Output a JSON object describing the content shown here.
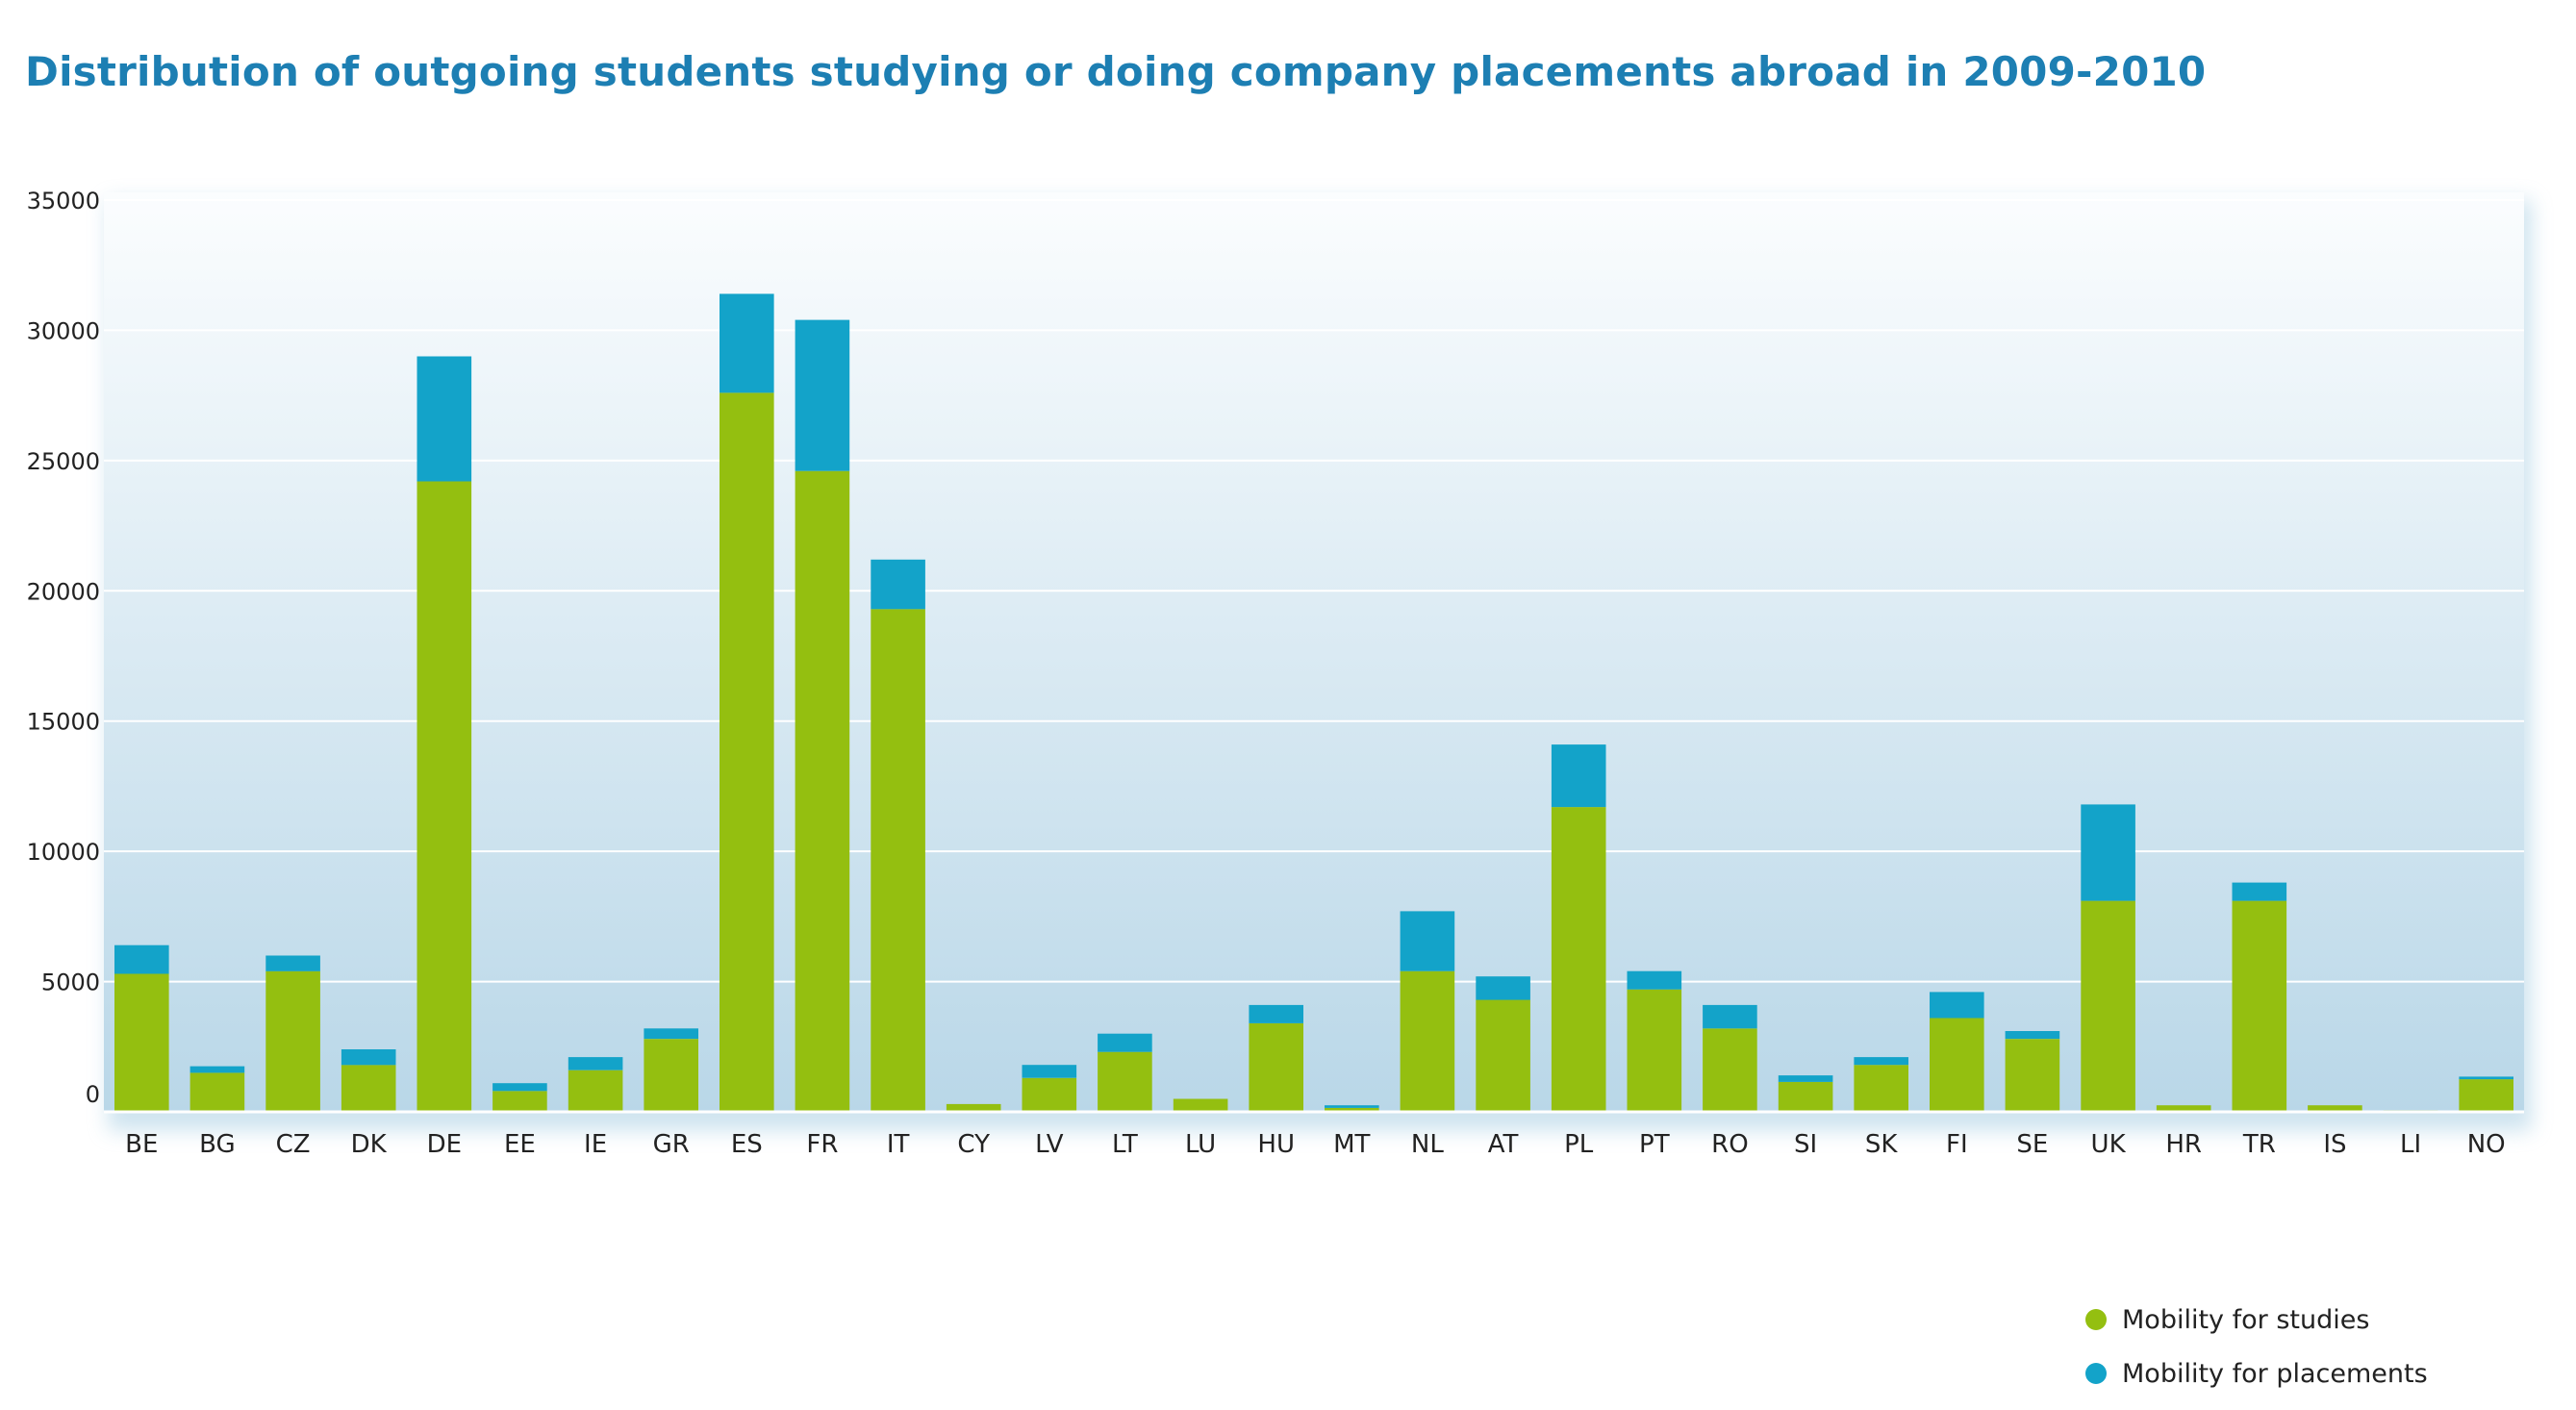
{
  "chart_data": {
    "type": "bar",
    "stacked": true,
    "title": "Distribution of outgoing students studying or doing company placements abroad in 2009-2010",
    "xlabel": "",
    "ylabel": "",
    "ylim": [
      0,
      35000
    ],
    "yticks": [
      "0",
      "5000",
      "10000",
      "15000",
      "20000",
      "25000",
      "30000",
      "35000"
    ],
    "grid": true,
    "legend_position": "bottom-right",
    "categories": [
      "BE",
      "BG",
      "CZ",
      "DK",
      "DE",
      "EE",
      "IE",
      "GR",
      "ES",
      "FR",
      "IT",
      "CY",
      "LV",
      "LT",
      "LU",
      "HU",
      "MT",
      "NL",
      "AT",
      "PL",
      "PT",
      "RO",
      "SI",
      "SK",
      "FI",
      "SE",
      "UK",
      "HR",
      "TR",
      "IS",
      "LI",
      "NO"
    ],
    "series": [
      {
        "name": "Mobility for studies",
        "color": "#94bf10",
        "values": [
          5300,
          1500,
          5400,
          1800,
          24200,
          800,
          1600,
          2800,
          27600,
          24600,
          19300,
          300,
          1300,
          2300,
          500,
          3400,
          150,
          5400,
          4300,
          11700,
          4700,
          3200,
          1150,
          1800,
          3600,
          2800,
          8100,
          250,
          8100,
          250,
          60,
          1250
        ]
      },
      {
        "name": "Mobility for placements",
        "color": "#13a3c9",
        "values": [
          1100,
          250,
          600,
          600,
          4800,
          300,
          500,
          400,
          3800,
          5800,
          1900,
          0,
          500,
          700,
          0,
          700,
          100,
          2300,
          900,
          2400,
          700,
          900,
          250,
          300,
          1000,
          300,
          3700,
          0,
          700,
          0,
          0,
          100
        ]
      }
    ]
  }
}
